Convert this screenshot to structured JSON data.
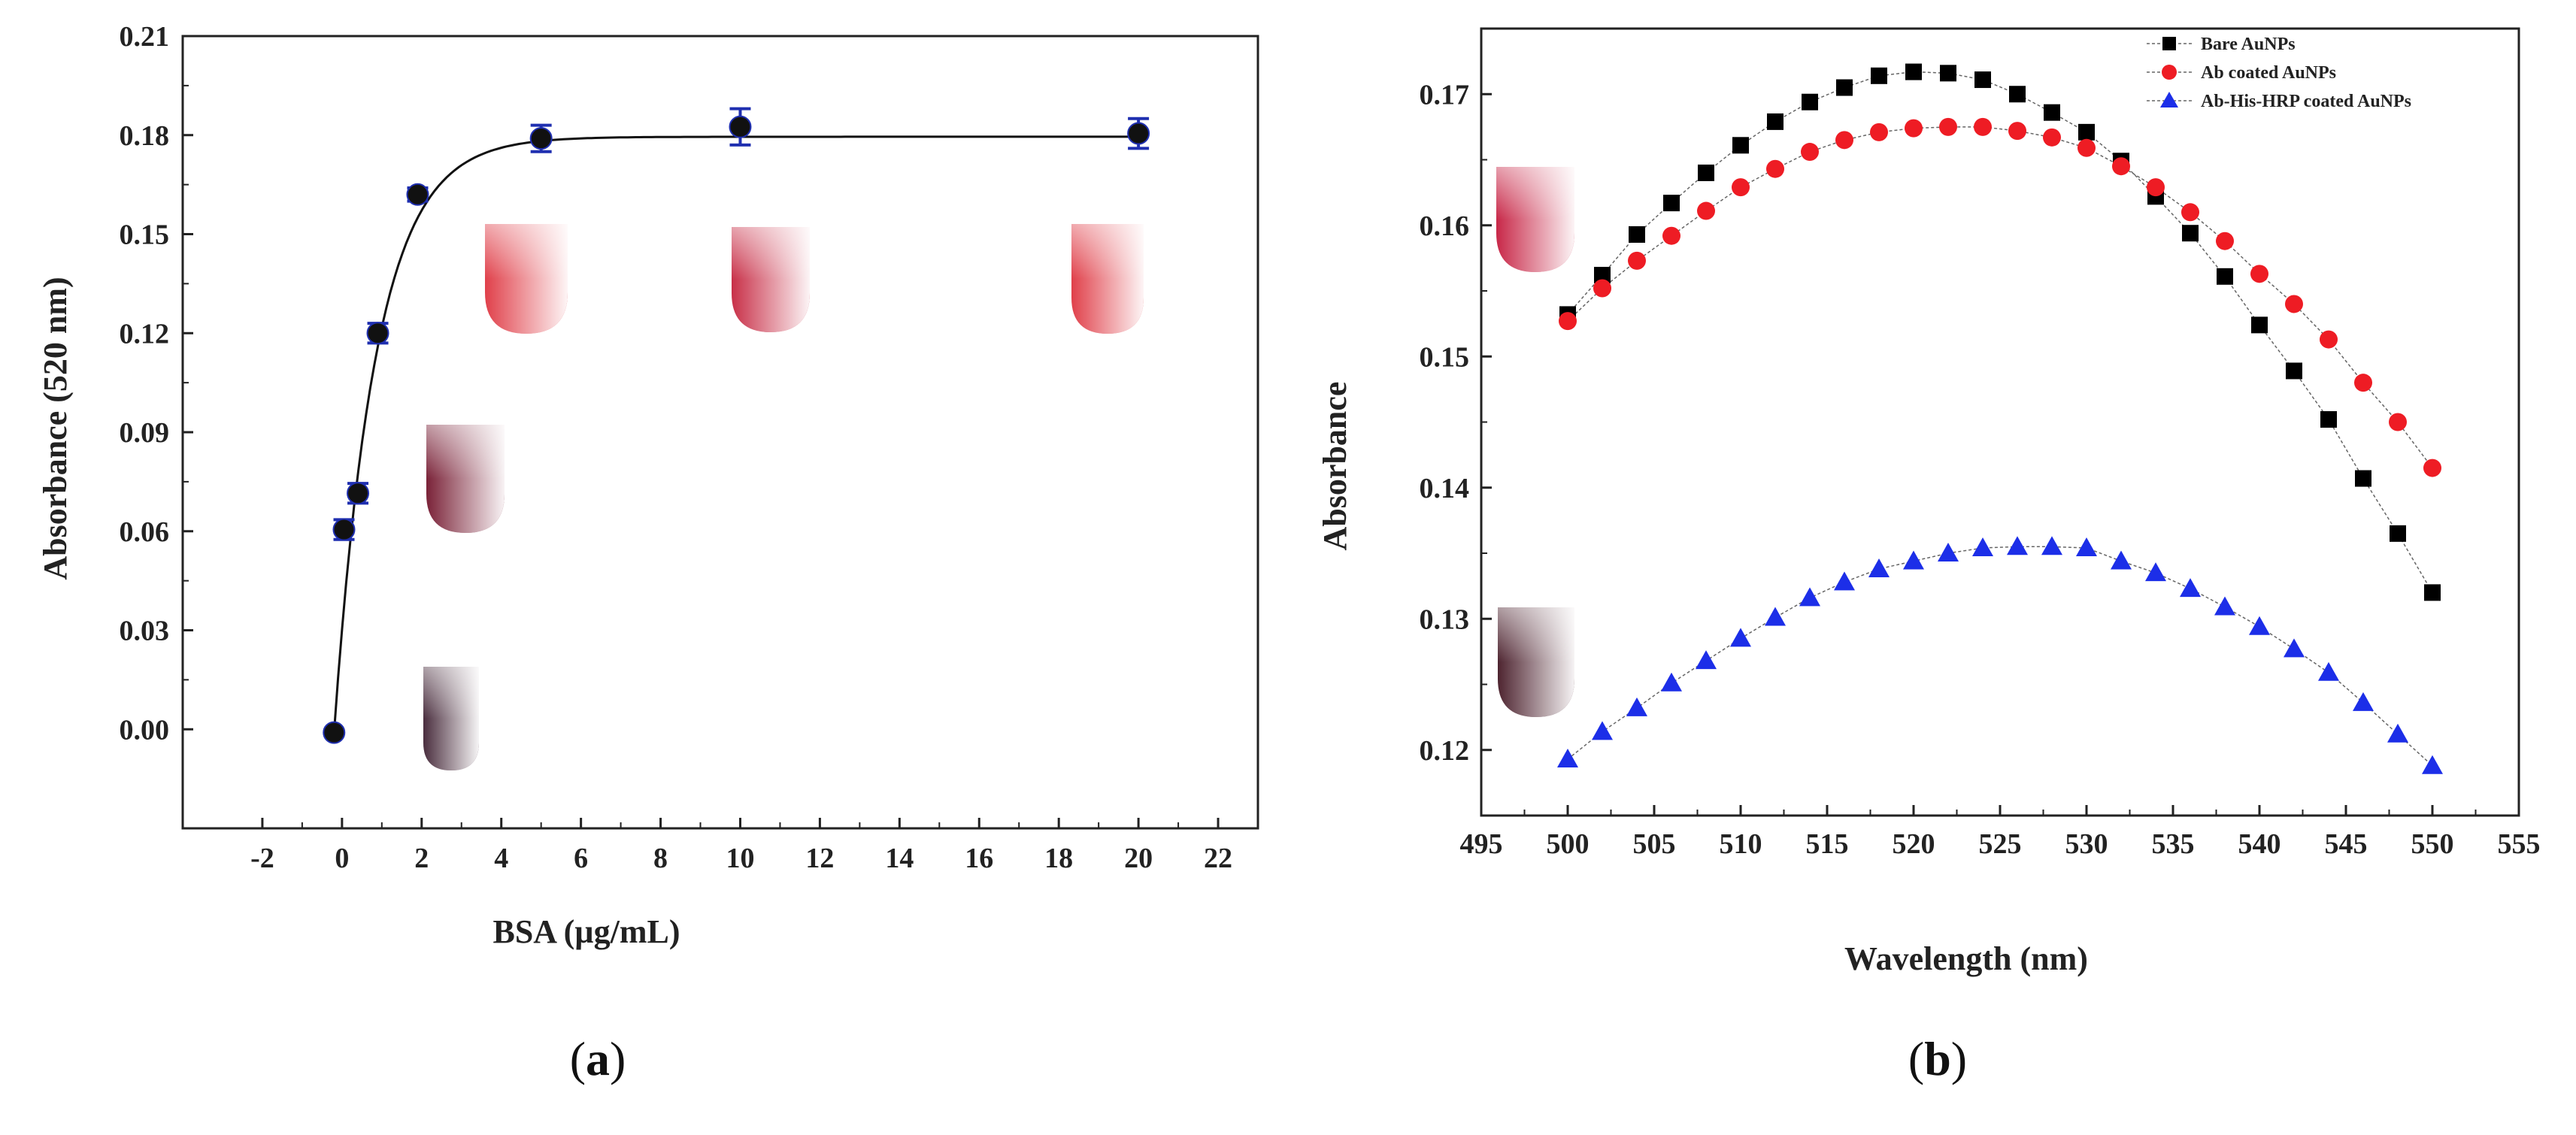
{
  "chart_data": [
    {
      "type": "line",
      "panel": "a",
      "caption_open": "(",
      "caption_letter": "a",
      "caption_close": ")",
      "xlabel": "BSA (µg/mL)",
      "ylabel": "Absorbance  (520 nm)",
      "xlim": [
        -4,
        23
      ],
      "ylim": [
        -0.03,
        0.21
      ],
      "xticks": [
        -2,
        0,
        2,
        4,
        6,
        8,
        10,
        12,
        14,
        16,
        18,
        20,
        22
      ],
      "yticks": [
        0.0,
        0.03,
        0.06,
        0.09,
        0.12,
        0.15,
        0.18,
        0.21
      ],
      "series": [
        {
          "name": "data",
          "x": [
            -0.2,
            0.05,
            0.4,
            0.9,
            1.9,
            5,
            10,
            20
          ],
          "y": [
            -0.001,
            0.0605,
            0.0715,
            0.12,
            0.162,
            0.179,
            0.1825,
            0.1805
          ],
          "err": [
            0.0005,
            0.003,
            0.003,
            0.003,
            0.002,
            0.004,
            0.0055,
            0.0045
          ],
          "marker_color": "#111111",
          "error_color": "#1f2fb0"
        }
      ],
      "fit": {
        "name": "fit",
        "ymin": -0.001,
        "ymax": 0.1795,
        "k": 0.95,
        "color": "#111111"
      },
      "tubes": [
        {
          "label": "tube-0",
          "color": "#4a2e3e"
        },
        {
          "label": "tube-0.4",
          "color": "#7a2238"
        },
        {
          "label": "tube-5",
          "color": "#e0404a"
        },
        {
          "label": "tube-10",
          "color": "#c83048"
        },
        {
          "label": "tube-20",
          "color": "#e0404a"
        }
      ]
    },
    {
      "type": "line",
      "panel": "b",
      "caption_open": "(",
      "caption_letter": "b",
      "caption_close": ")",
      "xlabel": "Wavelength  (nm)",
      "ylabel": "Absorbance",
      "xlim": [
        495,
        555
      ],
      "ylim": [
        0.115,
        0.175
      ],
      "xticks": [
        495,
        500,
        505,
        510,
        515,
        520,
        525,
        530,
        535,
        540,
        545,
        550,
        555
      ],
      "yticks": [
        0.12,
        0.13,
        0.14,
        0.15,
        0.16,
        0.17
      ],
      "ytick_labels": [
        "0.12",
        "0.13",
        "0.14",
        "0.15",
        "0.16",
        "0.17"
      ],
      "legend_position": "top-right",
      "x": [
        500,
        502,
        504,
        506,
        508,
        510,
        512,
        514,
        516,
        518,
        520,
        522,
        524,
        526,
        528,
        530,
        532,
        534,
        536,
        538,
        540,
        542,
        544,
        546,
        548,
        550
      ],
      "series": [
        {
          "name": "Bare AuNPs",
          "marker": "square",
          "color": "#000000",
          "values": [
            0.1532,
            0.1562,
            0.1593,
            0.1617,
            0.164,
            0.1661,
            0.1679,
            0.1694,
            0.1705,
            0.1714,
            0.1717,
            0.1716,
            0.1711,
            0.17,
            0.1686,
            0.1671,
            0.1649,
            0.1622,
            0.1594,
            0.1561,
            0.1524,
            0.1489,
            0.1452,
            0.1407,
            0.1365,
            0.132
          ]
        },
        {
          "name": "Ab coated AuNPs",
          "marker": "circle",
          "color": "#ee1c24",
          "values": [
            0.1527,
            0.1552,
            0.1573,
            0.1592,
            0.1611,
            0.1629,
            0.1643,
            0.1656,
            0.1665,
            0.1671,
            0.1674,
            0.1675,
            0.1675,
            0.1672,
            0.1667,
            0.1659,
            0.1645,
            0.1629,
            0.161,
            0.1588,
            0.1563,
            0.154,
            0.1513,
            0.148,
            0.145,
            0.1415
          ]
        },
        {
          "name": "Ab-His-HRP coated AuNPs",
          "marker": "triangle",
          "color": "#1c2ee8",
          "values": [
            0.1193,
            0.1214,
            0.1232,
            0.1251,
            0.1268,
            0.1285,
            0.1301,
            0.1316,
            0.1328,
            0.1338,
            0.1344,
            0.135,
            0.1354,
            0.1355,
            0.1355,
            0.1354,
            0.1344,
            0.1335,
            0.1323,
            0.1309,
            0.1294,
            0.1277,
            0.1259,
            0.1236,
            0.1212,
            0.1188
          ]
        }
      ],
      "tubes": [
        {
          "label": "tube-red",
          "color": "#c82848"
        },
        {
          "label": "tube-dark",
          "color": "#4e2430"
        }
      ]
    }
  ]
}
